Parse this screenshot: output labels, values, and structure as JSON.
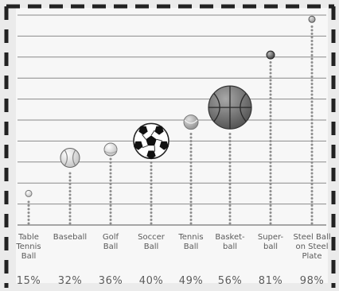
{
  "chart_data": {
    "type": "scatter",
    "categories": [
      "Table Tennis Ball",
      "Baseball",
      "Golf Ball",
      "Soccer Ball",
      "Tennis Ball",
      "Basket-ball",
      "Super-ball",
      "Steel Ball on Steel Plate"
    ],
    "category_lines": [
      [
        "Table",
        "Tennis",
        "Ball"
      ],
      [
        "Baseball"
      ],
      [
        "Golf",
        "Ball"
      ],
      [
        "Soccer",
        "Ball"
      ],
      [
        "Tennis",
        "Ball"
      ],
      [
        "Basket-",
        "ball"
      ],
      [
        "Super-",
        "ball"
      ],
      [
        "Steel Ball",
        "on Steel",
        "Plate"
      ]
    ],
    "values": [
      15,
      32,
      36,
      40,
      49,
      56,
      81,
      98
    ],
    "value_labels": [
      "15%",
      "32%",
      "36%",
      "40%",
      "49%",
      "56%",
      "81%",
      "98%"
    ],
    "icons": [
      "table-tennis-ball-icon",
      "baseball-icon",
      "golf-ball-icon",
      "soccer-ball-icon",
      "tennis-ball-icon",
      "basketball-icon",
      "superball-icon",
      "steel-ball-icon"
    ],
    "ylim": [
      0,
      100
    ],
    "grid": true,
    "colors": {
      "background": "#ebebeb",
      "plot": "#f7f7f7",
      "gridline": "#8a8a8a",
      "dots": "#8c8c8c",
      "border_dash": "#222222",
      "text": "#5a5a5a"
    }
  }
}
